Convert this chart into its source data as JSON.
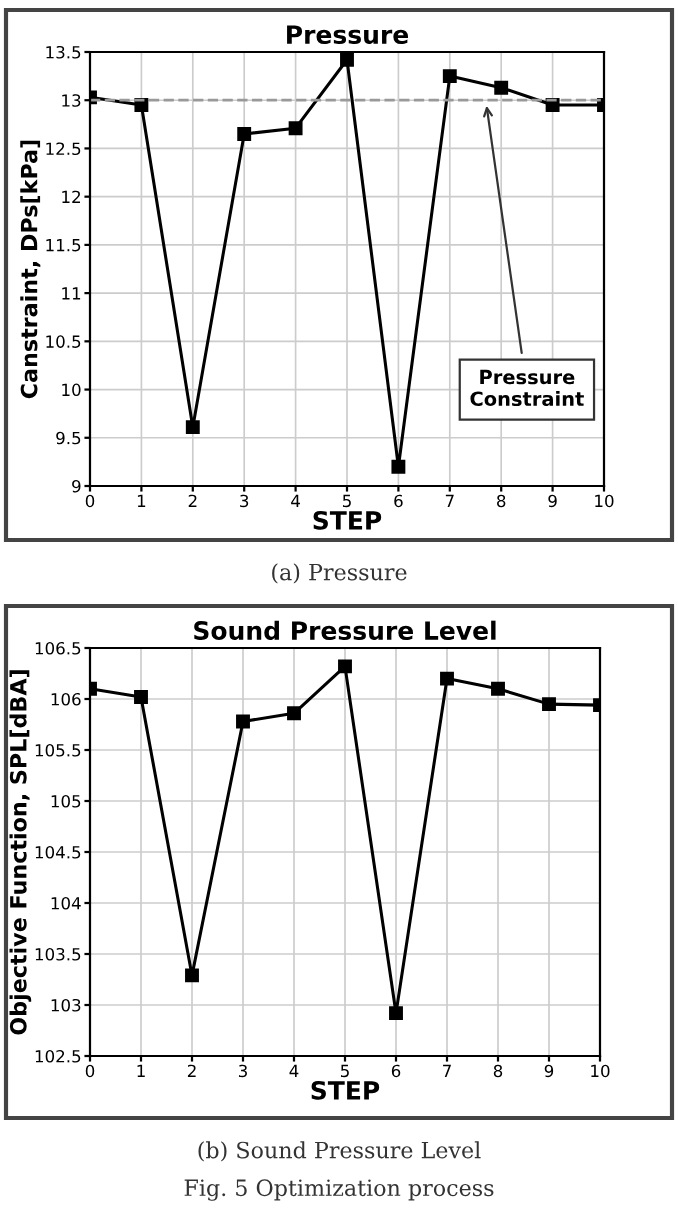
{
  "chart_data": [
    {
      "type": "line",
      "title": "Pressure",
      "xlabel": "STEP",
      "ylabel": "Canstraint, DPs[kPa]",
      "x": [
        0,
        1,
        2,
        3,
        4,
        5,
        6,
        7,
        8,
        9,
        10
      ],
      "series": [
        {
          "color": "#000000",
          "values": [
            13.03,
            12.95,
            9.61,
            12.65,
            12.71,
            13.42,
            9.2,
            13.25,
            13.13,
            12.95,
            12.95
          ]
        }
      ],
      "xlim": [
        0,
        10
      ],
      "xticks": [
        0,
        1,
        2,
        3,
        4,
        5,
        6,
        7,
        8,
        9,
        10
      ],
      "ylim": [
        9,
        13.5
      ],
      "yticks": [
        9,
        9.5,
        10,
        10.5,
        11,
        11.5,
        12,
        12.5,
        13,
        13.5
      ],
      "grid": true,
      "marker": "square",
      "line_style": "solid",
      "ref_lines": [
        {
          "axis": "y",
          "value": 13,
          "color": "#999999",
          "line_style": "dashed"
        }
      ],
      "annotations": [
        {
          "text": "Pressure\nConstraint",
          "x": 7.7,
          "y": 13
        },
        "(a) Pressure"
      ]
    },
    {
      "type": "line",
      "title": "Sound Pressure Level",
      "xlabel": "STEP",
      "ylabel": "Objective Function, SPL[dBA]",
      "x": [
        0,
        1,
        2,
        3,
        4,
        5,
        6,
        7,
        8,
        9,
        10
      ],
      "series": [
        {
          "color": "#000000",
          "values": [
            106.1,
            106.02,
            103.29,
            105.78,
            105.86,
            106.32,
            102.92,
            106.2,
            106.1,
            105.95,
            105.94
          ]
        }
      ],
      "xlim": [
        0,
        10
      ],
      "xticks": [
        0,
        1,
        2,
        3,
        4,
        5,
        6,
        7,
        8,
        9,
        10
      ],
      "ylim": [
        102.5,
        106.5
      ],
      "yticks": [
        102.5,
        103,
        103.5,
        104,
        104.5,
        105,
        105.5,
        106,
        106.5
      ],
      "grid": true,
      "marker": "square",
      "line_style": "solid",
      "annotations": [
        "(b) Sound Pressure Level",
        "Fig. 5 Optimization process"
      ]
    }
  ]
}
